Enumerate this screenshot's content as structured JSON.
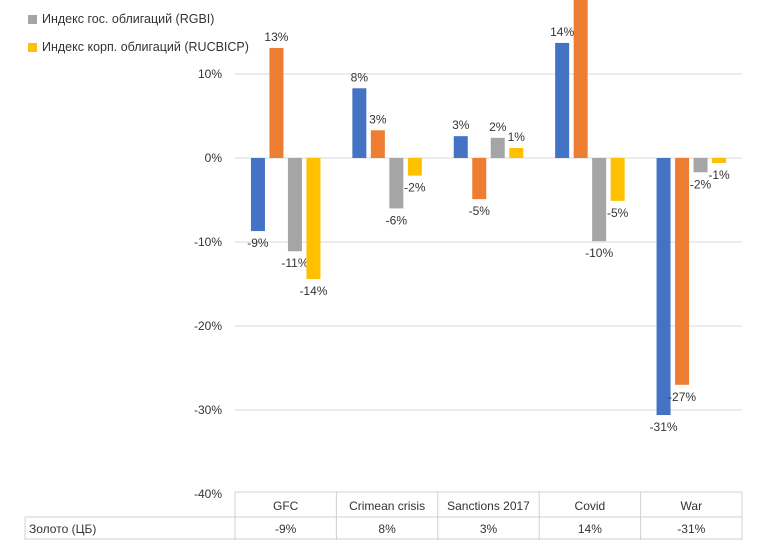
{
  "chart_data": {
    "type": "bar",
    "categories": [
      "GFC",
      "Crimean crisis",
      "Sanctions 2017",
      "Covid",
      "War"
    ],
    "series": [
      {
        "name": "Золото (ЦБ)",
        "color": "#4472C4",
        "values": [
          -8.7,
          8.3,
          2.6,
          13.7,
          -30.6
        ],
        "labels": [
          "-9%",
          "8%",
          "3%",
          "14%",
          "-31%"
        ]
      },
      {
        "name": "",
        "color": "#ED7D31",
        "values": [
          13.1,
          3.3,
          -4.9,
          20,
          -27
        ],
        "labels": [
          "13%",
          "3%",
          "-5%",
          null,
          "-27%"
        ]
      },
      {
        "name": "Индекс гос. облигаций (RGBI)",
        "color": "#A5A5A5",
        "values": [
          -11.1,
          -6,
          2.4,
          -9.9,
          -1.7
        ],
        "labels": [
          "-11%",
          "-6%",
          "2%",
          "-10%",
          "-2%"
        ]
      },
      {
        "name": "Индекс корп. облигаций (RUCBICP)",
        "color": "#FFC000",
        "values": [
          -14.4,
          -2.1,
          1.2,
          -5.1,
          -0.6
        ],
        "labels": [
          "-14%",
          "-2%",
          "1%",
          "-5%",
          "-1%"
        ]
      }
    ],
    "yticks": [
      "10%",
      "0%",
      "-10%",
      "-20%",
      "-30%",
      "-40%"
    ],
    "ytick_values": [
      10,
      0,
      -10,
      -20,
      -30,
      -40
    ],
    "ylim": [
      -40,
      18.8
    ],
    "grid": true,
    "legend_position": "top-left",
    "data_table": {
      "row_label": "Золото (ЦБ)",
      "values": [
        "-9%",
        "8%",
        "3%",
        "14%",
        "-31%"
      ]
    }
  }
}
